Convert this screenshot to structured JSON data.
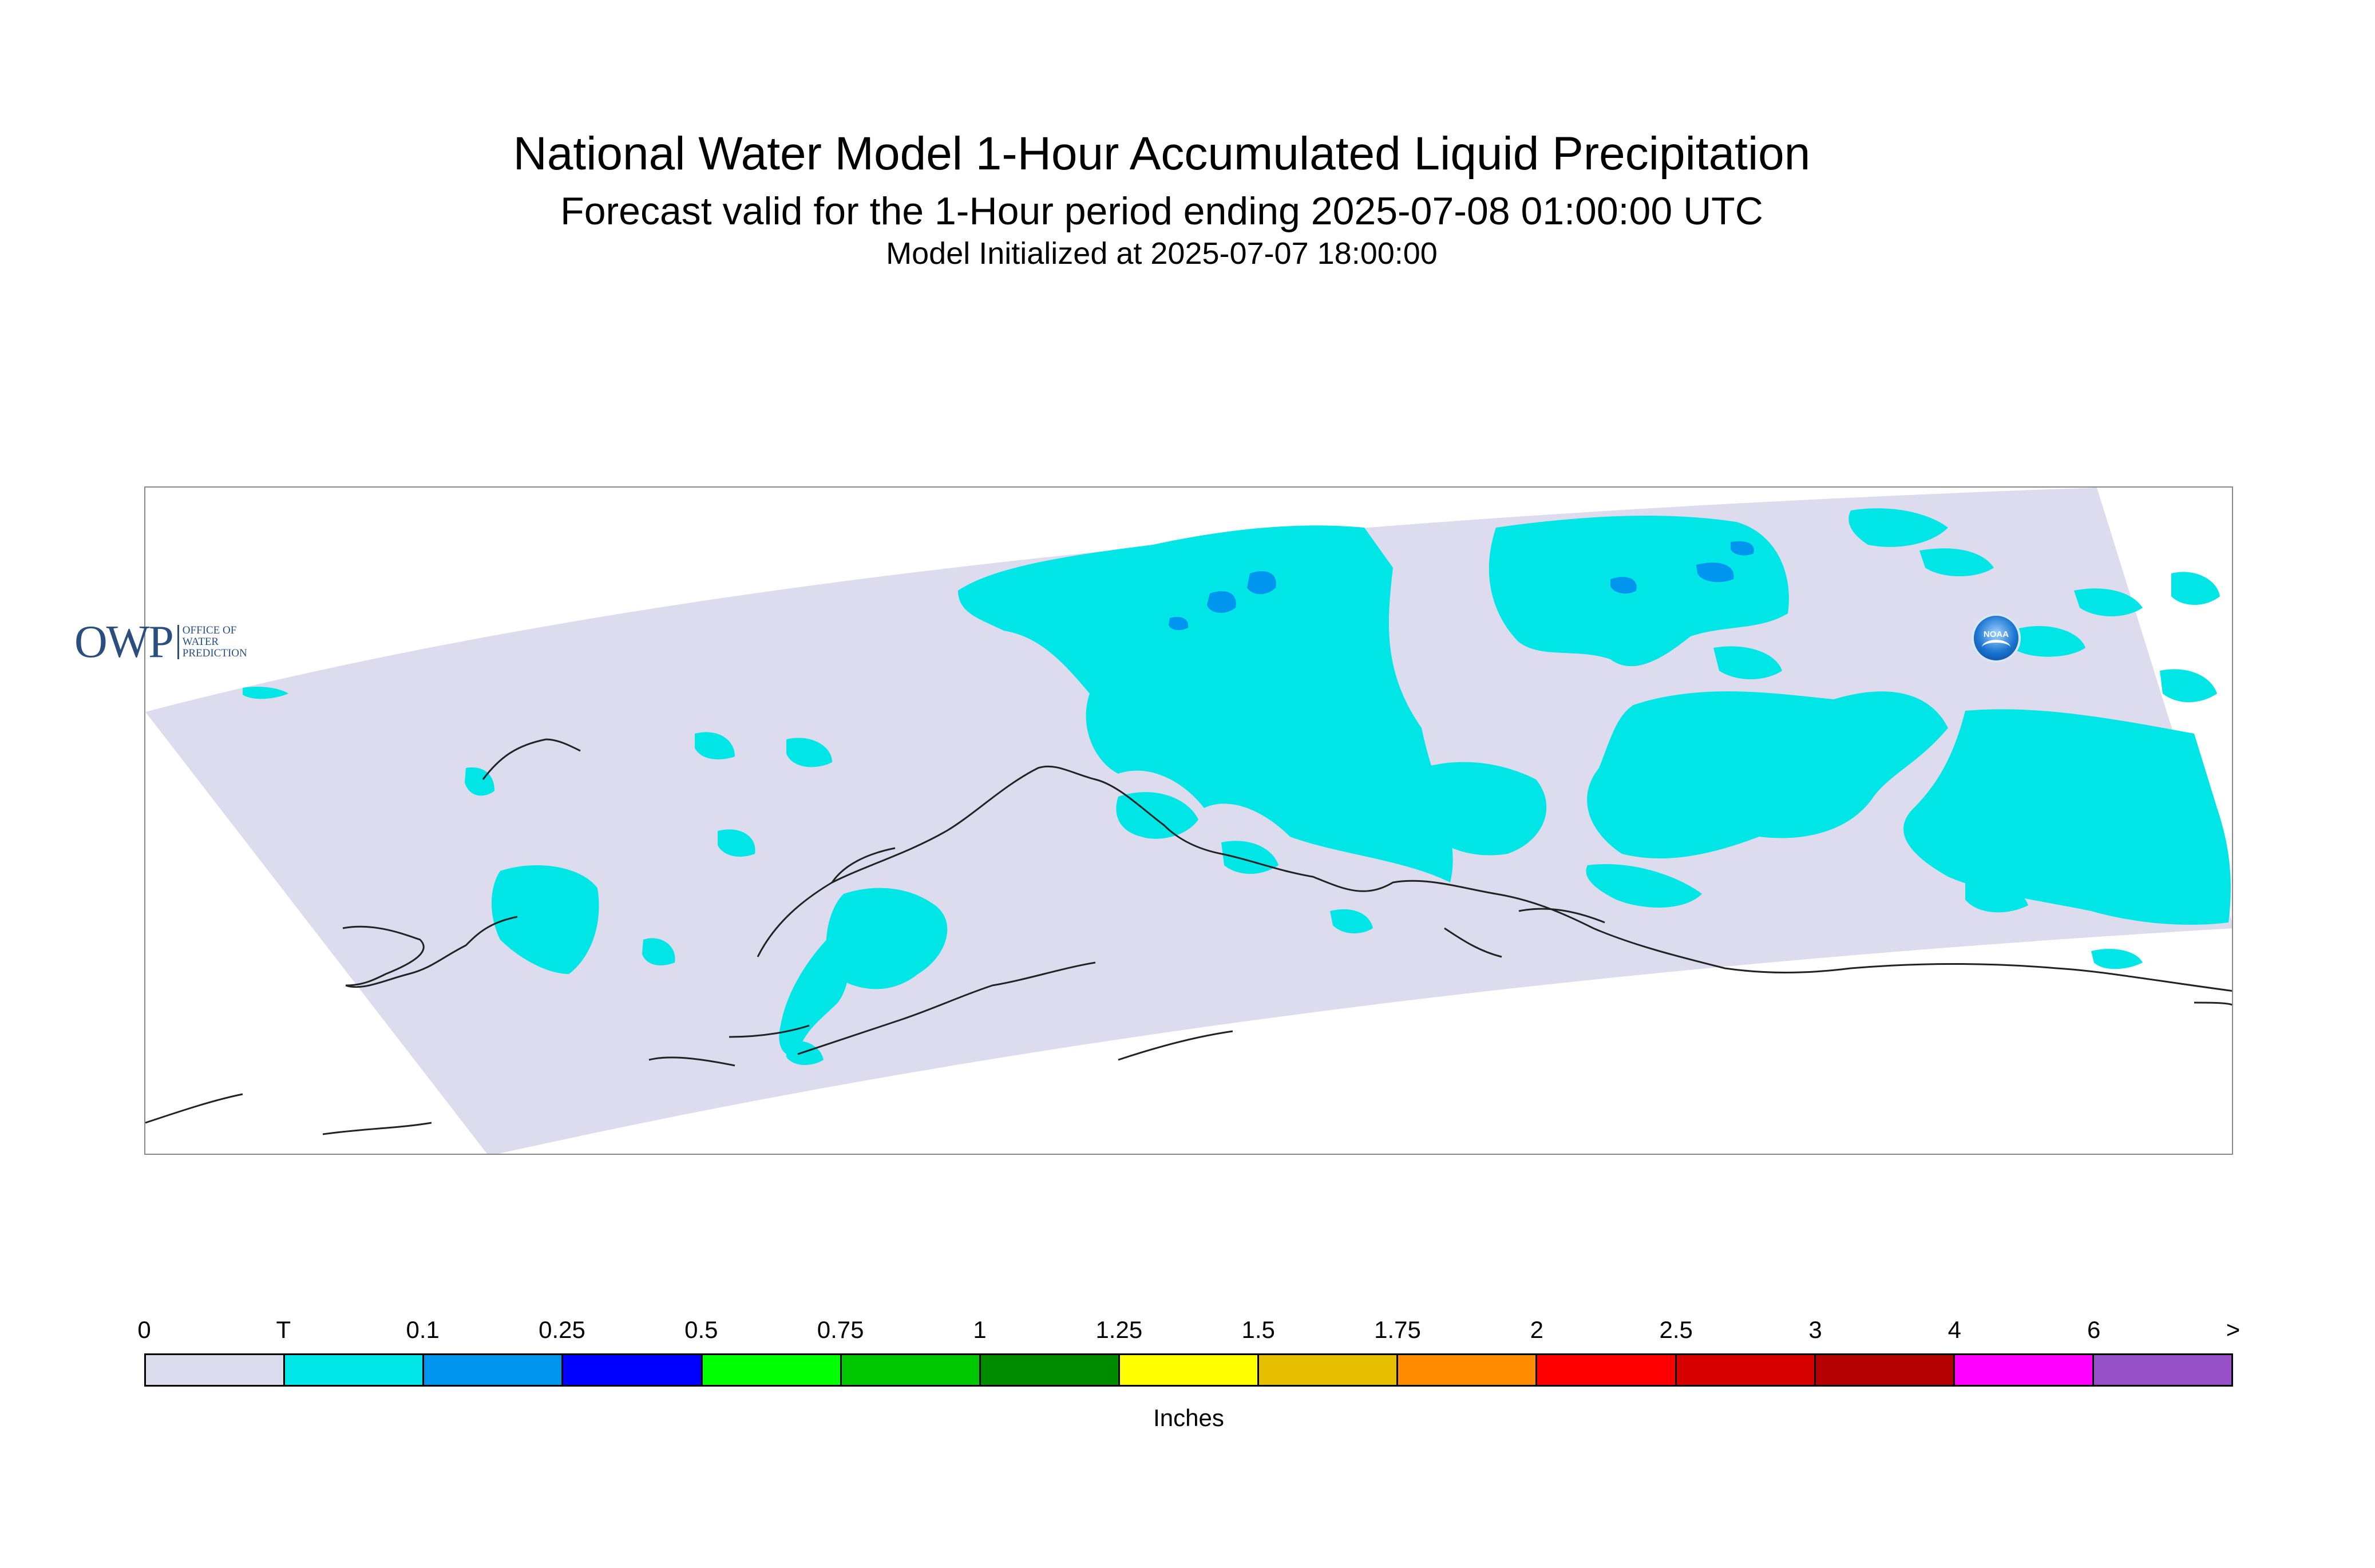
{
  "title": "National Water Model 1-Hour Accumulated Liquid Precipitation",
  "subtitle": "Forecast valid for the 1-Hour period ending 2025-07-08 01:00:00 UTC",
  "initialized": "Model Initialized at 2025-07-07 18:00:00",
  "logos": {
    "owp_mark": "OWP",
    "owp_text": [
      "Office of",
      "Water",
      "Prediction"
    ],
    "noaa_wordmark": "NOAA"
  },
  "legend": {
    "tick_labels": [
      "0",
      "T",
      "0.1",
      "0.25",
      "0.5",
      "0.75",
      "1",
      "1.25",
      "1.5",
      "1.75",
      "2",
      "2.5",
      "3",
      "4",
      "6",
      ">"
    ],
    "colors": [
      "#dcdcee",
      "#00e5e5",
      "#0096f0",
      "#0000ff",
      "#00ff00",
      "#00c800",
      "#008c00",
      "#ffff00",
      "#e6be00",
      "#ff8c00",
      "#ff0000",
      "#d70000",
      "#b40000",
      "#ff00ff",
      "#9650c8"
    ],
    "units": "Inches"
  },
  "map": {
    "domain_color": "#dcdcee",
    "trace_color": "#00e5e5",
    "light_color": "#0096f0",
    "coast_color": "#222222"
  }
}
